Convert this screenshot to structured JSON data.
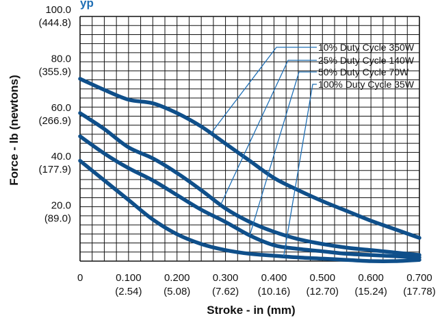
{
  "header": {
    "title_fragment": "yp"
  },
  "chart_data": {
    "type": "line",
    "title": "",
    "xlabel": "Stroke - in (mm)",
    "ylabel": "Force - lb (newtons)",
    "xlim": [
      0,
      0.7
    ],
    "ylim": [
      0,
      100
    ],
    "grid": true,
    "x_ticks": [
      {
        "value": 0,
        "label": "0",
        "sub": ""
      },
      {
        "value": 0.1,
        "label": "0.100",
        "sub": "(2.54)"
      },
      {
        "value": 0.2,
        "label": "0.200",
        "sub": "(5.08)"
      },
      {
        "value": 0.3,
        "label": "0.300",
        "sub": "(7.62)"
      },
      {
        "value": 0.4,
        "label": "0.400",
        "sub": "(10.16)"
      },
      {
        "value": 0.5,
        "label": "0.500",
        "sub": "(12.70)"
      },
      {
        "value": 0.6,
        "label": "0.600",
        "sub": "(15.24)"
      },
      {
        "value": 0.7,
        "label": "0.700",
        "sub": "(17.78)"
      }
    ],
    "y_ticks": [
      {
        "value": 100,
        "label": "100.0",
        "sub": "(444.8)"
      },
      {
        "value": 80,
        "label": "80.0",
        "sub": "(355.9)"
      },
      {
        "value": 60,
        "label": "60.0",
        "sub": "(266.9)"
      },
      {
        "value": 40,
        "label": "40.0",
        "sub": "(177.9)"
      },
      {
        "value": 20,
        "label": "20.0",
        "sub": "(89.0)"
      }
    ],
    "series": [
      {
        "name": "10% Duty Cycle 350W",
        "x": [
          0,
          0.05,
          0.1,
          0.15,
          0.2,
          0.25,
          0.3,
          0.35,
          0.4,
          0.45,
          0.5,
          0.55,
          0.6,
          0.65,
          0.7
        ],
        "y": [
          74.5,
          70,
          66,
          64.5,
          60.5,
          55,
          48,
          41,
          34,
          29,
          24.5,
          20.5,
          16.5,
          13,
          9.5
        ],
        "pointer_at": 0.27
      },
      {
        "name": "25% Duty Cycle 140W",
        "x": [
          0,
          0.05,
          0.1,
          0.15,
          0.2,
          0.25,
          0.3,
          0.35,
          0.4,
          0.45,
          0.5,
          0.55,
          0.6,
          0.65,
          0.7
        ],
        "y": [
          60.5,
          54,
          46.5,
          42,
          36,
          29,
          21.5,
          16,
          12,
          9,
          7,
          5.5,
          4.5,
          3.5,
          2.5
        ],
        "pointer_at": 0.29
      },
      {
        "name": "50% Duty Cycle 70W",
        "x": [
          0,
          0.05,
          0.1,
          0.15,
          0.2,
          0.25,
          0.3,
          0.35,
          0.4,
          0.45,
          0.5,
          0.55,
          0.6,
          0.65,
          0.7
        ],
        "y": [
          51,
          44,
          38,
          33,
          27,
          21,
          16,
          10.5,
          6.5,
          5,
          4,
          3,
          2.5,
          2,
          1.5
        ],
        "pointer_at": 0.35
      },
      {
        "name": "100% Duty Cycle 35W",
        "x": [
          0,
          0.05,
          0.1,
          0.15,
          0.2,
          0.25,
          0.3,
          0.35,
          0.4,
          0.45,
          0.5,
          0.55,
          0.6,
          0.65,
          0.7
        ],
        "y": [
          41,
          33,
          25,
          17,
          11,
          7,
          4.5,
          3,
          2.2,
          1.5,
          1,
          0.5,
          0,
          0,
          0.5
        ],
        "pointer_at": 0.42
      }
    ],
    "colors": {
      "line": "#0f4f8a",
      "grid": "#111111",
      "leader": "#1f6fb5",
      "title": "#1f6fb5"
    }
  }
}
